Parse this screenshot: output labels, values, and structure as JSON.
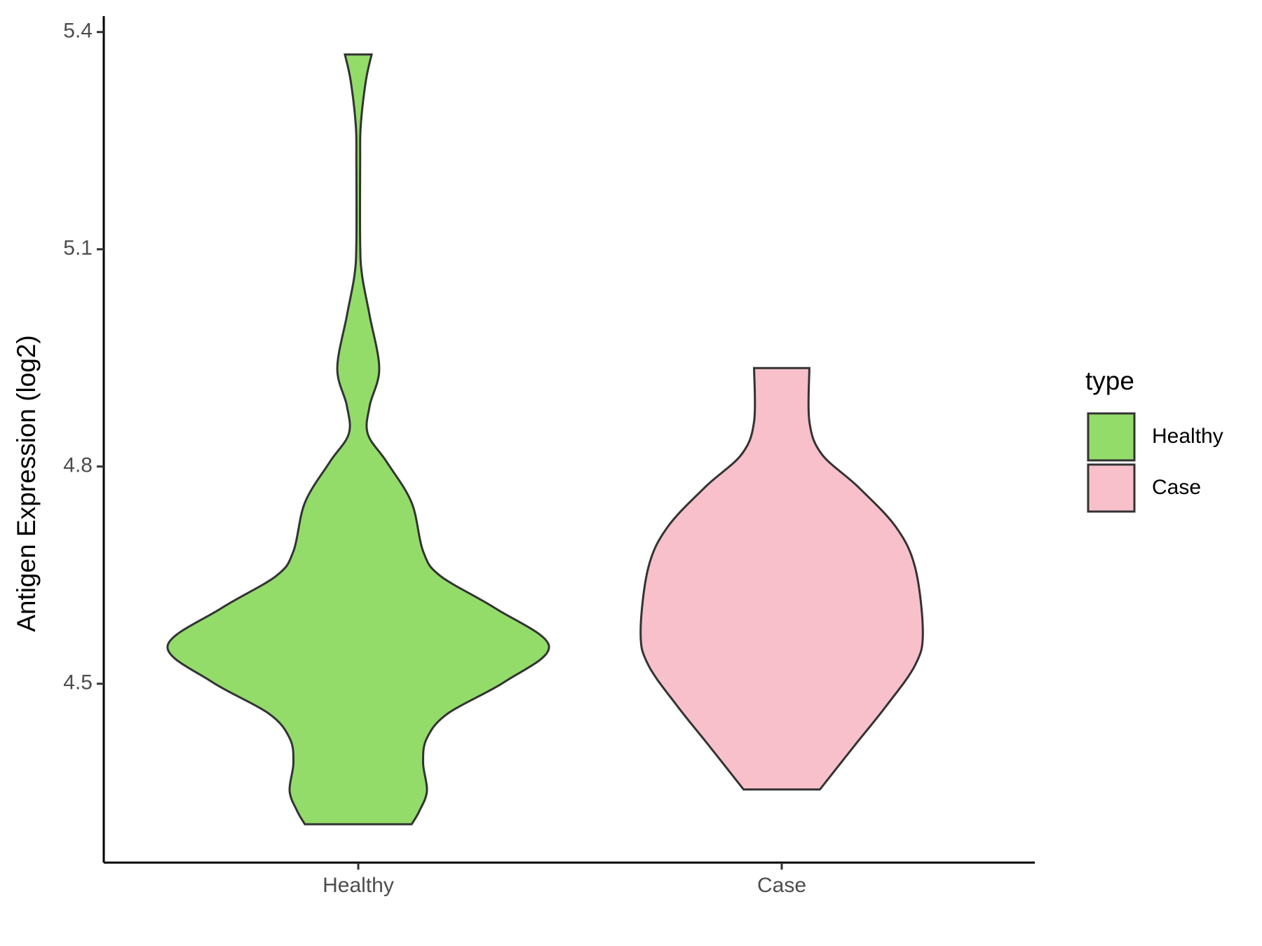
{
  "chart_data": {
    "type": "violin",
    "y_label": "Antigen Expression (log2)",
    "categories": [
      "Healthy",
      "Case"
    ],
    "legend_title": "type",
    "legend": "right",
    "grid": false,
    "ylim": [
      4.253,
      5.422
    ],
    "yticks": [
      4.5,
      4.8,
      5.1,
      5.4
    ],
    "series": [
      {
        "name": "Healthy",
        "color": "#93dc6a",
        "y": [
          4.306,
          4.324,
          4.352,
          4.391,
          4.425,
          4.459,
          4.503,
          4.552,
          4.604,
          4.649,
          4.683,
          4.75,
          4.806,
          4.845,
          4.884,
          4.935,
          5.008,
          5.064,
          5.109,
          5.221,
          5.271,
          5.333,
          5.369
        ],
        "density": [
          0.28,
          0.32,
          0.36,
          0.34,
          0.36,
          0.47,
          0.77,
          1,
          0.72,
          0.43,
          0.34,
          0.28,
          0.15,
          0.05,
          0.06,
          0.11,
          0.06,
          0.02,
          0.01,
          0.01,
          0.013,
          0.04,
          0.07
        ]
      },
      {
        "name": "Case",
        "color": "#f8c0cb",
        "y": [
          4.354,
          4.414,
          4.47,
          4.526,
          4.571,
          4.66,
          4.716,
          4.772,
          4.817,
          4.862,
          4.936
        ],
        "density": [
          0.2,
          0.38,
          0.55,
          0.7,
          0.74,
          0.7,
          0.6,
          0.4,
          0.21,
          0.145,
          0.145
        ]
      }
    ]
  }
}
